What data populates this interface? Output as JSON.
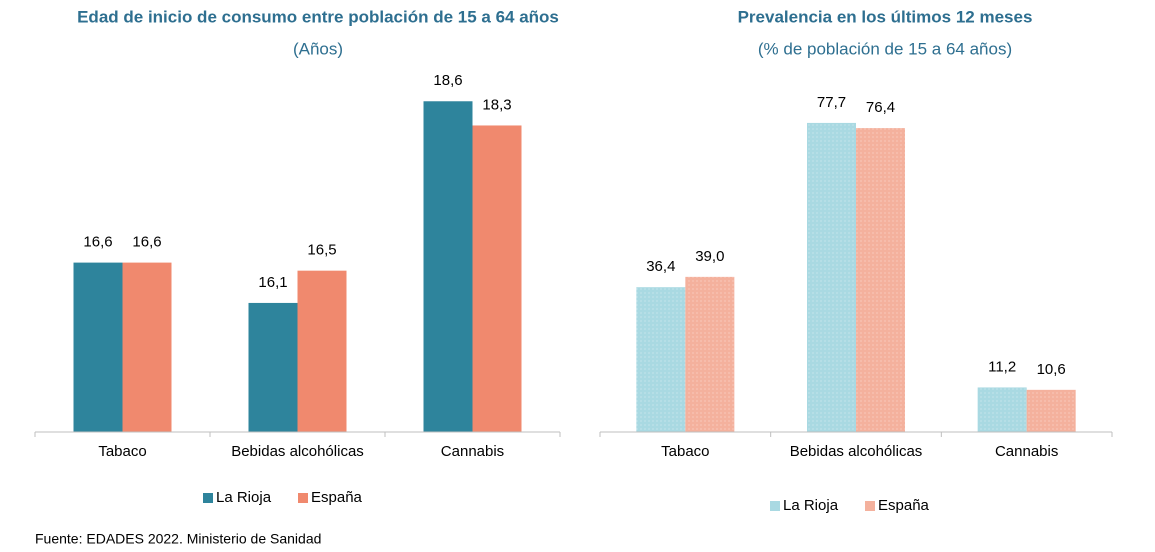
{
  "chart_data": [
    {
      "type": "bar",
      "title": "Edad de inicio de consumo entre población de 15 a 64 años",
      "subtitle": "(Años)",
      "categories": [
        "Tabaco",
        "Bebidas alcohólicas",
        "Cannabis"
      ],
      "series": [
        {
          "name": "La Rioja",
          "color": "#2e849c",
          "values": [
            16.6,
            16.1,
            18.6
          ],
          "value_labels": [
            "16,6",
            "16,1",
            "18,6"
          ]
        },
        {
          "name": "España",
          "color": "#f0896e",
          "values": [
            16.6,
            16.5,
            18.3
          ],
          "value_labels": [
            "16,6",
            "16,5",
            "18,3"
          ]
        }
      ],
      "ylim": [
        14.5,
        19
      ],
      "legend": "bottom"
    },
    {
      "type": "bar",
      "title": "Prevalencia en los últimos 12 meses",
      "subtitle": "(% de población de 15 a 64 años)",
      "categories": [
        "Tabaco",
        "Bebidas alcohólicas",
        "Cannabis"
      ],
      "series": [
        {
          "name": "La Rioja",
          "color": "#a9d9e2",
          "values": [
            36.4,
            77.7,
            11.2
          ],
          "value_labels": [
            "36,4",
            "77,7",
            "11,2"
          ]
        },
        {
          "name": "España",
          "color": "#f4b19d",
          "values": [
            39.0,
            76.4,
            10.6
          ],
          "value_labels": [
            "39,0",
            "76,4",
            "10,6"
          ]
        }
      ],
      "ylim": [
        0,
        90
      ],
      "legend": "bottom"
    }
  ],
  "source": "Fuente: EDADES 2022. Ministerio de Sanidad"
}
